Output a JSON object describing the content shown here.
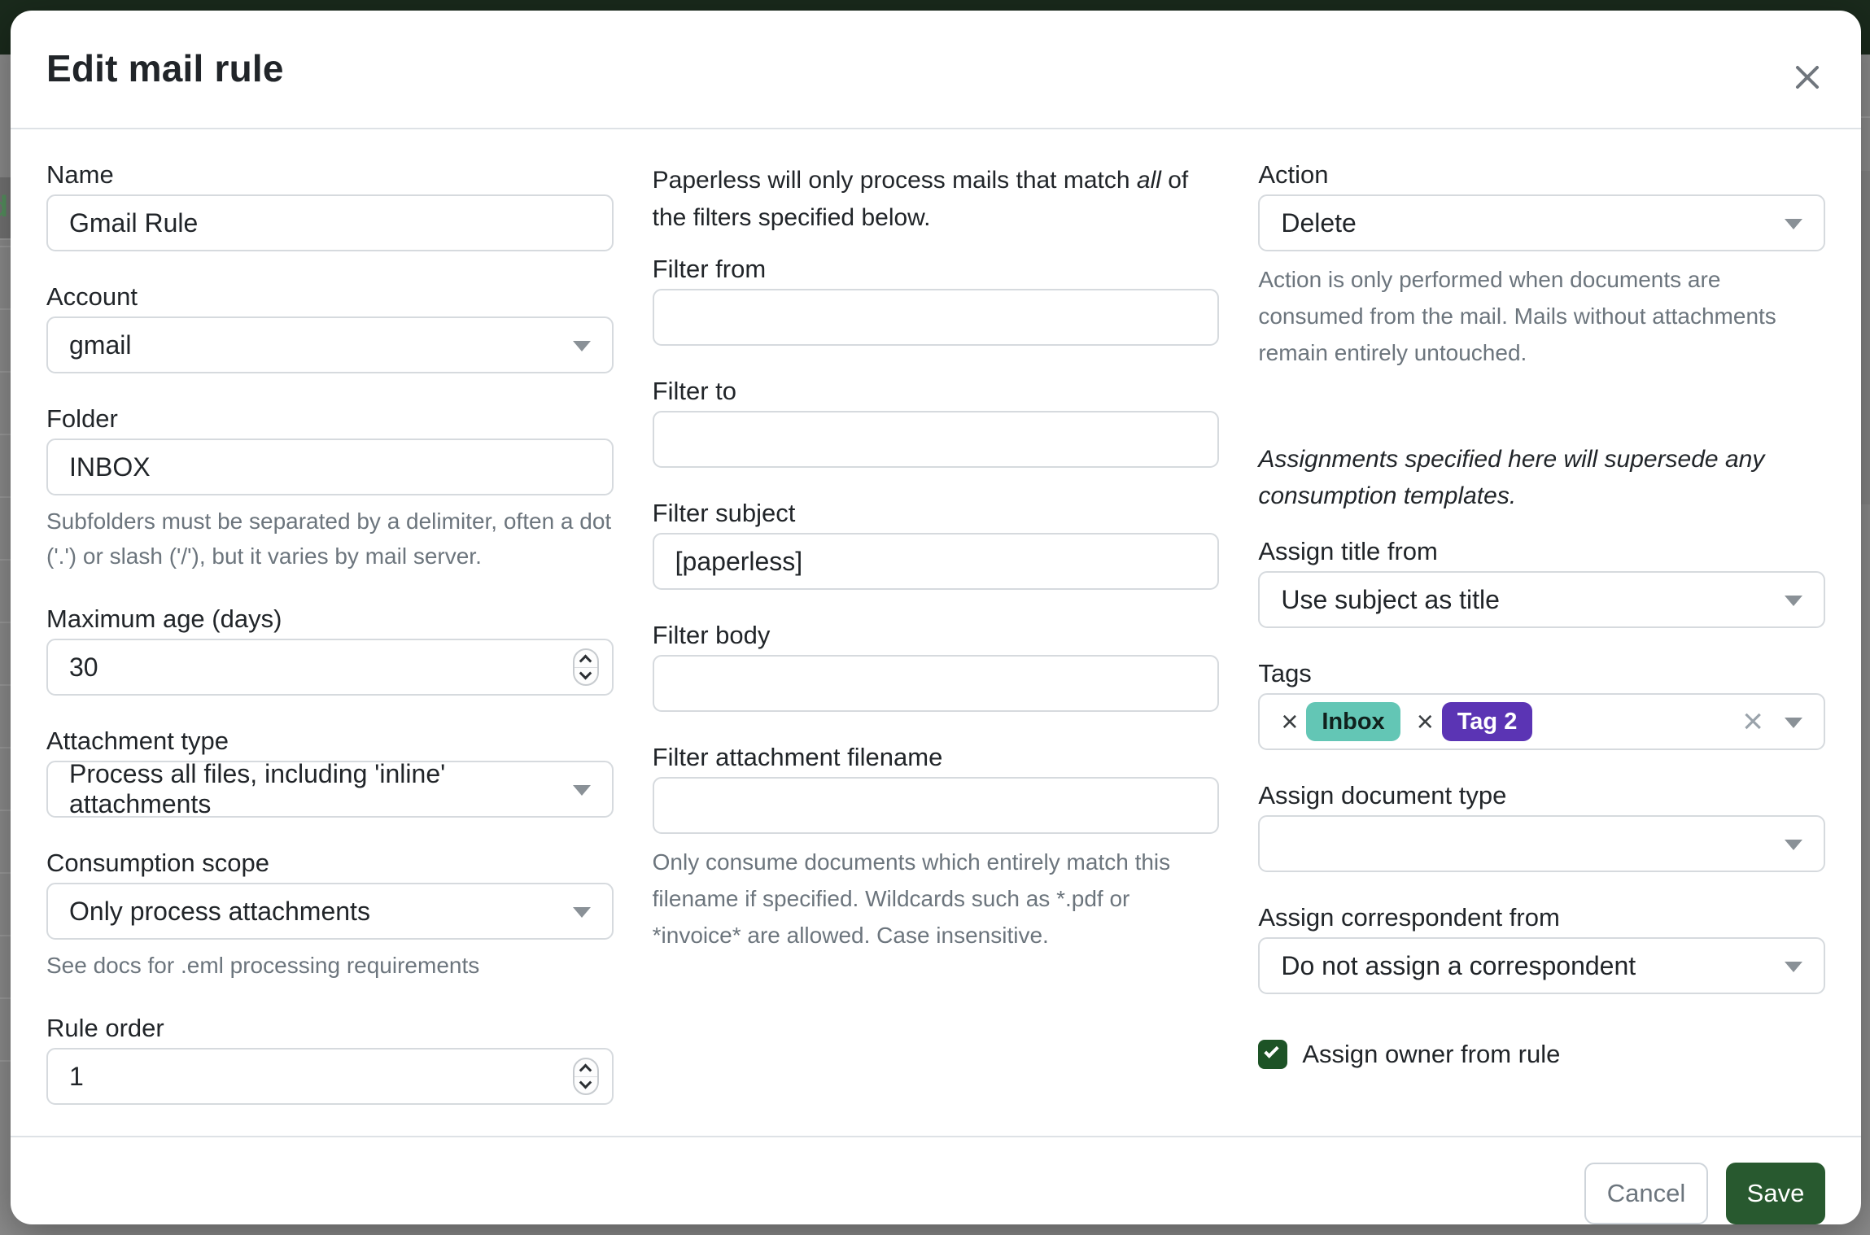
{
  "modal": {
    "title": "Edit mail rule",
    "footer": {
      "cancel": "Cancel",
      "save": "Save"
    }
  },
  "left": {
    "name": {
      "label": "Name",
      "value": "Gmail Rule"
    },
    "account": {
      "label": "Account",
      "value": "gmail"
    },
    "folder": {
      "label": "Folder",
      "value": "INBOX",
      "help": "Subfolders must be separated by a delimiter, often a dot ('.') or slash ('/'), but it varies by mail server."
    },
    "max_age": {
      "label": "Maximum age (days)",
      "value": "30"
    },
    "attachment_type": {
      "label": "Attachment type",
      "value": "Process all files, including 'inline' attachments"
    },
    "consumption_scope": {
      "label": "Consumption scope",
      "value": "Only process attachments",
      "help": "See docs for .eml processing requirements"
    },
    "rule_order": {
      "label": "Rule order",
      "value": "1"
    }
  },
  "middle": {
    "intro": {
      "pre": "Paperless will only process mails that match ",
      "em": "all",
      "post": " of the filters specified below."
    },
    "filter_from": {
      "label": "Filter from",
      "value": ""
    },
    "filter_to": {
      "label": "Filter to",
      "value": ""
    },
    "filter_subject": {
      "label": "Filter subject",
      "value": "[paperless]"
    },
    "filter_body": {
      "label": "Filter body",
      "value": ""
    },
    "filter_filename": {
      "label": "Filter attachment filename",
      "value": "",
      "help": "Only consume documents which entirely match this filename if specified. Wildcards such as *.pdf or *invoice* are allowed. Case insensitive."
    }
  },
  "right": {
    "action": {
      "label": "Action",
      "value": "Delete",
      "help": "Action is only performed when documents are consumed from the mail. Mails without attachments remain entirely untouched."
    },
    "assignments_note": "Assignments specified here will supersede any consumption templates.",
    "assign_title": {
      "label": "Assign title from",
      "value": "Use subject as title"
    },
    "tags": {
      "label": "Tags",
      "chips": [
        {
          "text": "Inbox",
          "color": "#63c6b5",
          "text_color": "#10211d"
        },
        {
          "text": "Tag 2",
          "color": "#5b34b4",
          "text_color": "#ffffff"
        }
      ],
      "remove_icon": "×",
      "clear_icon": "×"
    },
    "assign_doctype": {
      "label": "Assign document type",
      "value": ""
    },
    "assign_correspondent": {
      "label": "Assign correspondent from",
      "value": "Do not assign a correspondent"
    },
    "assign_owner": {
      "label": "Assign owner from rule",
      "checked": true
    }
  },
  "background": {
    "link_fragment": "d"
  },
  "colors": {
    "accent_green": "#28592f",
    "checkbox_green": "#1d5326",
    "navbar": "#1a2a1c",
    "backdrop": "#8c8c8c"
  }
}
